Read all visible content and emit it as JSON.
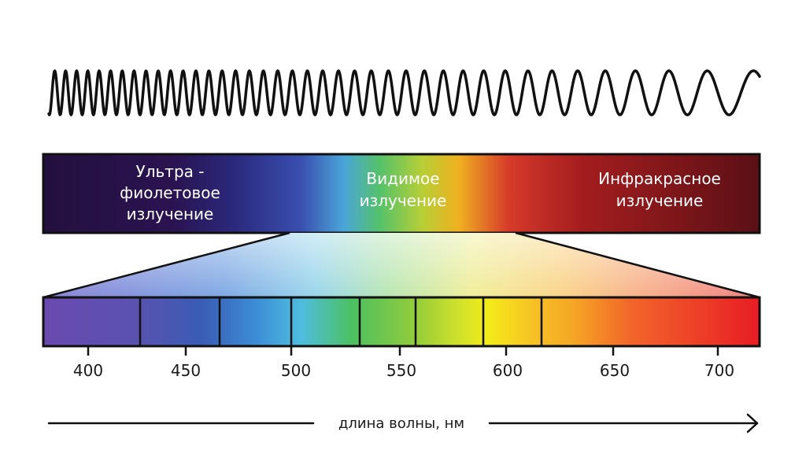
{
  "bands": [
    {
      "id": "uv",
      "lines": [
        "Ультра -",
        "фиолетовое",
        "излучение"
      ]
    },
    {
      "id": "visible",
      "lines": [
        "Видимое",
        "излучение"
      ]
    },
    {
      "id": "ir",
      "lines": [
        "Инфракрасное",
        "излучение"
      ]
    }
  ],
  "wavelength_ticks": [
    "400",
    "450",
    "500",
    "550",
    "600",
    "650",
    "700"
  ],
  "axis_label": "длина волны, нм",
  "colors": {
    "uv": "#2a0f4a",
    "ir": "#5e0f18",
    "outline": "#111111"
  }
}
